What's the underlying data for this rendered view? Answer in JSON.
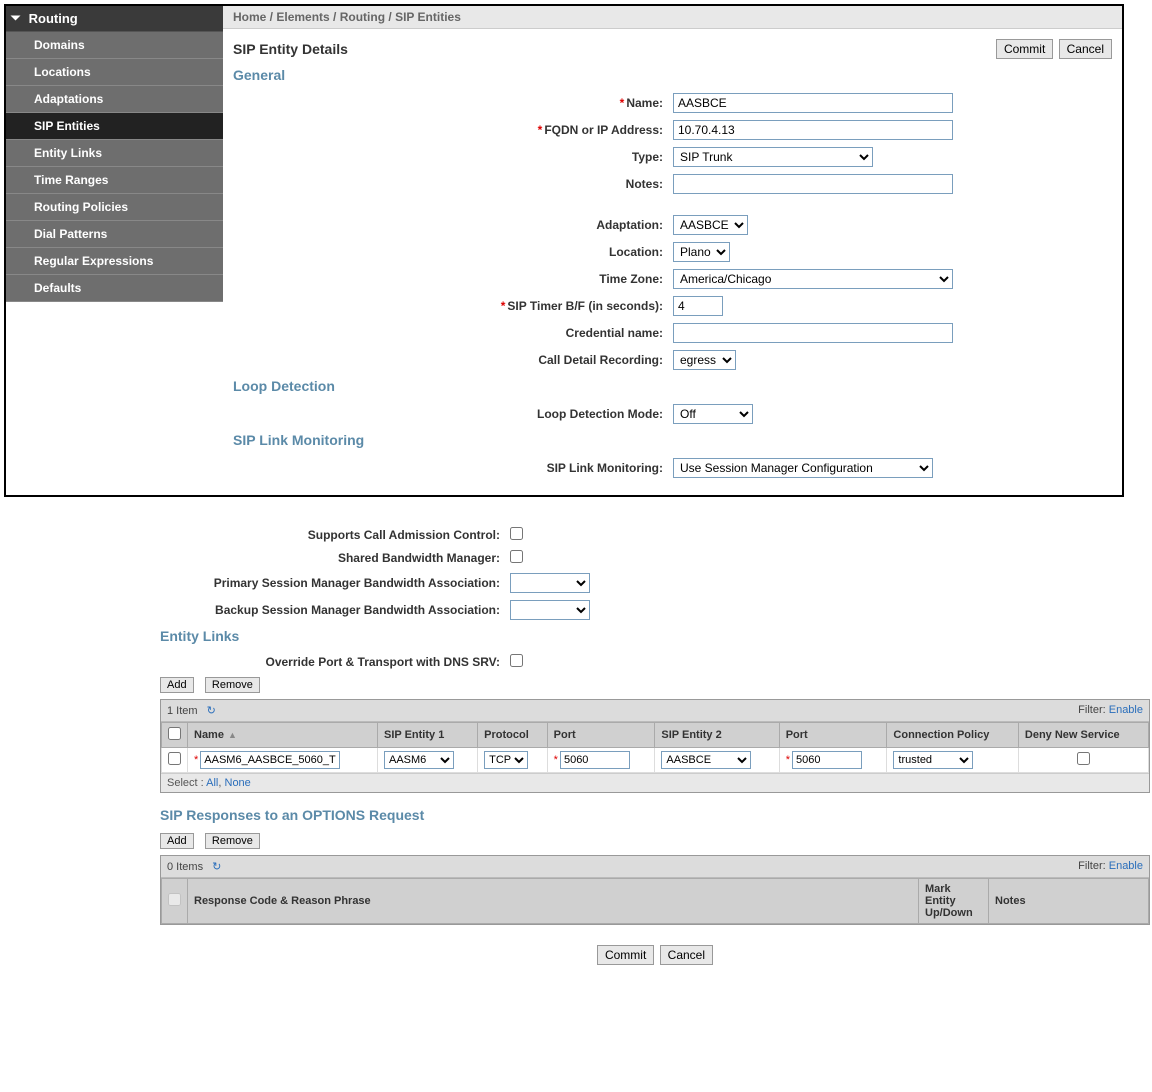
{
  "breadcrumb": [
    "Home",
    "Elements",
    "Routing",
    "SIP Entities"
  ],
  "sidebar": {
    "header": "Routing",
    "items": [
      {
        "label": "Domains"
      },
      {
        "label": "Locations"
      },
      {
        "label": "Adaptations"
      },
      {
        "label": "SIP Entities",
        "active": true
      },
      {
        "label": "Entity Links"
      },
      {
        "label": "Time Ranges"
      },
      {
        "label": "Routing Policies"
      },
      {
        "label": "Dial Patterns"
      },
      {
        "label": "Regular Expressions"
      },
      {
        "label": "Defaults"
      }
    ]
  },
  "page_title": "SIP Entity Details",
  "buttons": {
    "commit": "Commit",
    "cancel": "Cancel",
    "add": "Add",
    "remove": "Remove"
  },
  "sections": {
    "general": "General",
    "loop": "Loop Detection",
    "sip_link": "SIP Link Monitoring",
    "entity_links": "Entity Links",
    "sip_resp": "SIP Responses to an OPTIONS Request"
  },
  "fields": {
    "name": {
      "label": "Name:",
      "value": "AASBCE",
      "required": true
    },
    "fqdn": {
      "label": "FQDN or IP Address:",
      "value": "10.70.4.13",
      "required": true
    },
    "type": {
      "label": "Type:",
      "value": "SIP Trunk"
    },
    "notes": {
      "label": "Notes:",
      "value": ""
    },
    "adaptation": {
      "label": "Adaptation:",
      "value": "AASBCE"
    },
    "location": {
      "label": "Location:",
      "value": "Plano"
    },
    "timezone": {
      "label": "Time Zone:",
      "value": "America/Chicago"
    },
    "sip_timer": {
      "label": "SIP Timer B/F (in seconds):",
      "value": "4",
      "required": true
    },
    "cred_name": {
      "label": "Credential name:",
      "value": ""
    },
    "cdr": {
      "label": "Call Detail Recording:",
      "value": "egress"
    },
    "loop_mode": {
      "label": "Loop Detection Mode:",
      "value": "Off"
    },
    "sip_link_mon": {
      "label": "SIP Link Monitoring:",
      "value": "Use Session Manager Configuration"
    },
    "supports_cac": {
      "label": "Supports Call Admission Control:"
    },
    "shared_bw": {
      "label": "Shared Bandwidth Manager:"
    },
    "primary_sm": {
      "label": "Primary Session Manager Bandwidth Association:"
    },
    "backup_sm": {
      "label": "Backup Session Manager Bandwidth Association:"
    },
    "override_port": {
      "label": "Override Port & Transport with DNS SRV:"
    }
  },
  "entity_links_table": {
    "item_count": "1 Item",
    "filter_label": "Filter:",
    "filter_action": "Enable",
    "columns": [
      "",
      "Name",
      "SIP Entity 1",
      "Protocol",
      "Port",
      "SIP Entity 2",
      "Port",
      "Connection Policy",
      "Deny New Service"
    ],
    "row": {
      "name": "AASM6_AASBCE_5060_T",
      "sip1": "AASM6",
      "protocol": "TCP",
      "port1": "5060",
      "sip2": "AASBCE",
      "port2": "5060",
      "policy": "trusted"
    },
    "select_label": "Select :",
    "select_all": "All",
    "select_none": "None"
  },
  "options_table": {
    "item_count": "0 Items",
    "filter_label": "Filter:",
    "filter_action": "Enable",
    "columns": [
      "",
      "Response Code & Reason Phrase",
      "Mark Entity Up/Down",
      "Notes"
    ]
  },
  "colors": {
    "section_header": "#5b8aa8",
    "sidebar_bg": "#6e6e6e",
    "sidebar_active": "#222222",
    "link": "#2a6ebb",
    "required": "#d00000",
    "input_border": "#7a9ebd"
  }
}
